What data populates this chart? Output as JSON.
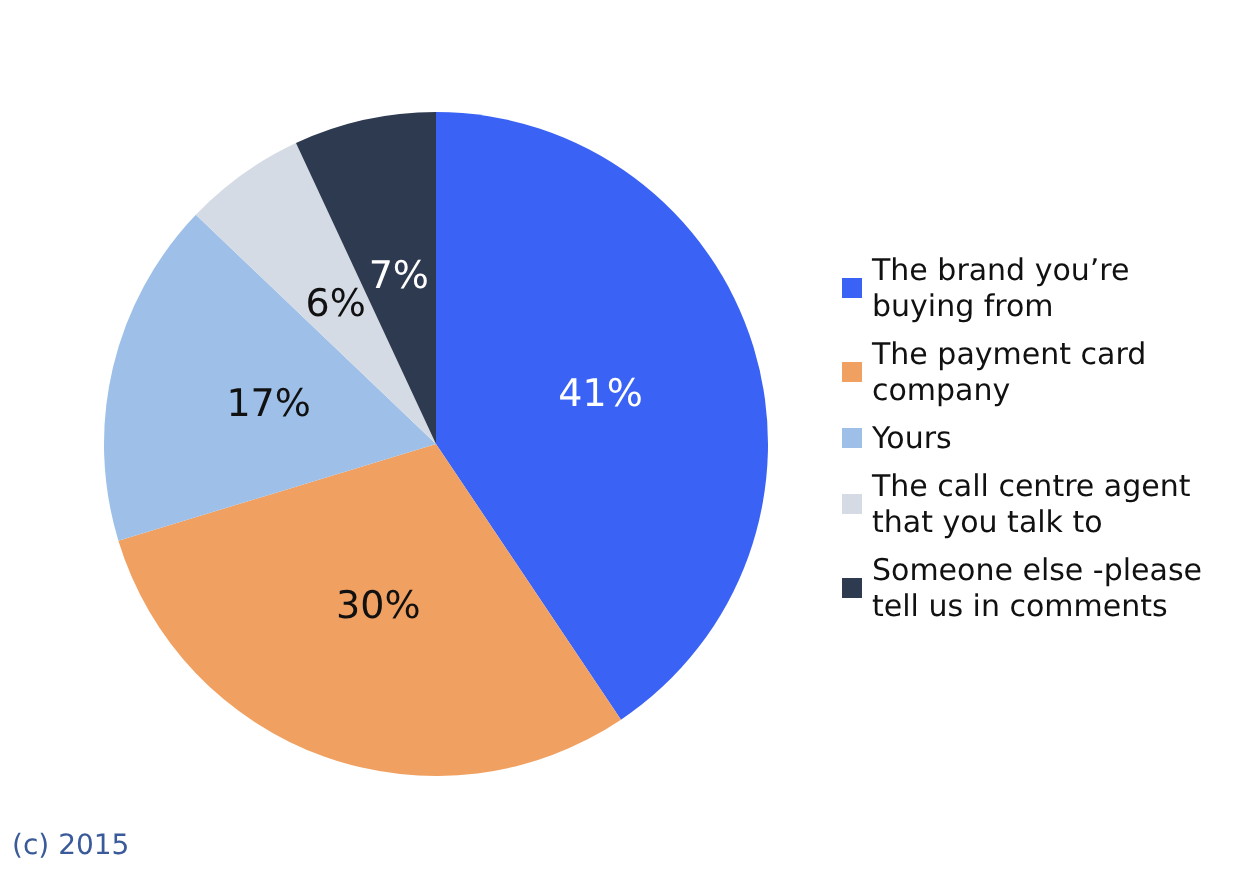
{
  "chart_data": {
    "type": "pie",
    "categories": [
      "The brand you’re buying from",
      "The payment card company",
      "Yours",
      "The call centre agent that you talk to",
      "Someone else -please tell us in comments"
    ],
    "values": [
      41,
      30,
      17,
      6,
      7
    ],
    "value_labels": [
      "41%",
      "30%",
      "17%",
      "6%",
      "7%"
    ],
    "colors": [
      "#3a62f5",
      "#f0a060",
      "#9dbfe8",
      "#d5dbe5",
      "#2e3a50"
    ],
    "legend": "right",
    "annotations": [
      "(c) 2015"
    ]
  }
}
